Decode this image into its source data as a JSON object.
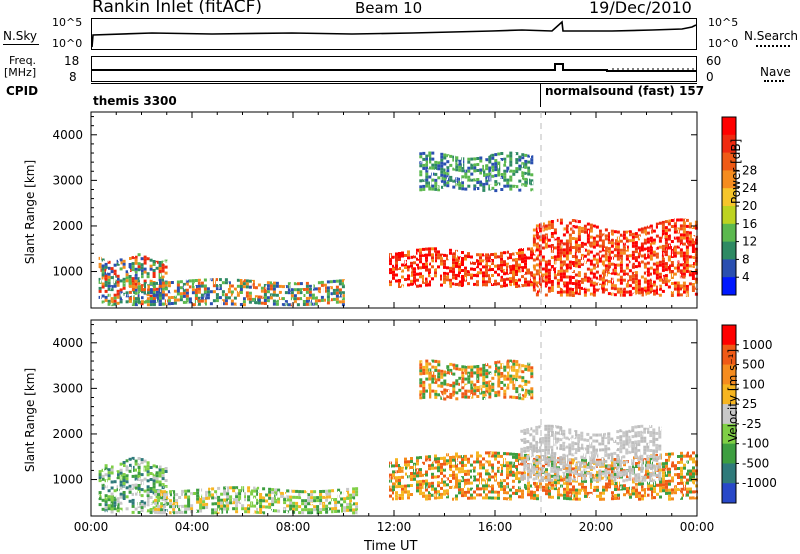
{
  "header": {
    "title": "Rankin Inlet (fitACF)",
    "beam": "Beam 10",
    "date": "19/Dec/2010"
  },
  "top_panels": {
    "nsky_label": "N.Sky",
    "nsky_ticks": [
      "10^5",
      "10^0"
    ],
    "nsearch_label": "N.Search",
    "nsearch_ticks": [
      "10^5",
      "10^0"
    ],
    "freq_label": "Freq.",
    "freq_unit": "[MHz]",
    "freq_ticks": [
      "18",
      "8"
    ],
    "nave_label": "Nave",
    "nave_ticks": [
      "60",
      "0"
    ],
    "cpid_label": "CPID",
    "cpid_left": "themis 3300",
    "cpid_right": "normalsound (fast) 157"
  },
  "chart_data": [
    {
      "type": "heatmap",
      "panel": "power",
      "ylabel": "Slant Range [km]",
      "xlabel": "",
      "yticks": [
        "1000",
        "2000",
        "3000",
        "4000"
      ],
      "ylim": [
        200,
        4500
      ],
      "xlim": [
        0,
        24
      ],
      "colorbar_label": "Power [dB]",
      "colorbar_ticks": [
        "4",
        "8",
        "12",
        "16",
        "20",
        "24",
        "28"
      ],
      "colorbar_colors": [
        "#0018ff",
        "#2a4fb0",
        "#2e8a63",
        "#5bb84e",
        "#bdd320",
        "#f6c52b",
        "#f58c1f",
        "#ef5a16",
        "#ef2a10",
        "#ff0000"
      ],
      "echo_regions": [
        {
          "t_start": 0.3,
          "t_end": 3.0,
          "r_min": 300,
          "r_max": 1500,
          "level": "weak-mixed"
        },
        {
          "t_start": 1.5,
          "t_end": 10.0,
          "r_min": 300,
          "r_max": 900,
          "level": "moderate"
        },
        {
          "t_start": 11.8,
          "t_end": 17.5,
          "r_min": 700,
          "r_max": 1600,
          "level": "strong"
        },
        {
          "t_start": 17.5,
          "t_end": 24.0,
          "r_min": 500,
          "r_max": 2300,
          "level": "strong"
        },
        {
          "t_start": 13.0,
          "t_end": 17.5,
          "r_min": 2800,
          "r_max": 3700,
          "level": "weak"
        }
      ]
    },
    {
      "type": "heatmap",
      "panel": "velocity",
      "ylabel": "Slant Range [km]",
      "xlabel": "Time UT",
      "yticks": [
        "1000",
        "2000",
        "3000",
        "4000"
      ],
      "xticks": [
        "00:00",
        "04:00",
        "08:00",
        "12:00",
        "16:00",
        "20:00",
        "00:00"
      ],
      "ylim": [
        200,
        4500
      ],
      "xlim": [
        0,
        24
      ],
      "colorbar_label": "Velocity [m s⁻¹]",
      "colorbar_ticks": [
        "1000",
        "500",
        "100",
        "25",
        "-25",
        "-100",
        "-500",
        "-1000"
      ],
      "colorbar_colors": [
        "#2848c8",
        "#2f7a7a",
        "#3d9e40",
        "#7fcf45",
        "#c8c8c8",
        "#f6b520",
        "#f58c1f",
        "#ef5a16",
        "#ff0000"
      ],
      "echo_regions": [
        {
          "t_start": 0.3,
          "t_end": 3.0,
          "r_min": 300,
          "r_max": 1600,
          "level": "green-grey"
        },
        {
          "t_start": 2.5,
          "t_end": 10.5,
          "r_min": 300,
          "r_max": 900,
          "level": "grey-green"
        },
        {
          "t_start": 11.8,
          "t_end": 24.0,
          "r_min": 600,
          "r_max": 1700,
          "level": "orange"
        },
        {
          "t_start": 17.0,
          "t_end": 22.5,
          "r_min": 1000,
          "r_max": 2300,
          "level": "grey"
        },
        {
          "t_start": 13.0,
          "t_end": 17.5,
          "r_min": 2800,
          "r_max": 3700,
          "level": "orange"
        }
      ]
    }
  ]
}
